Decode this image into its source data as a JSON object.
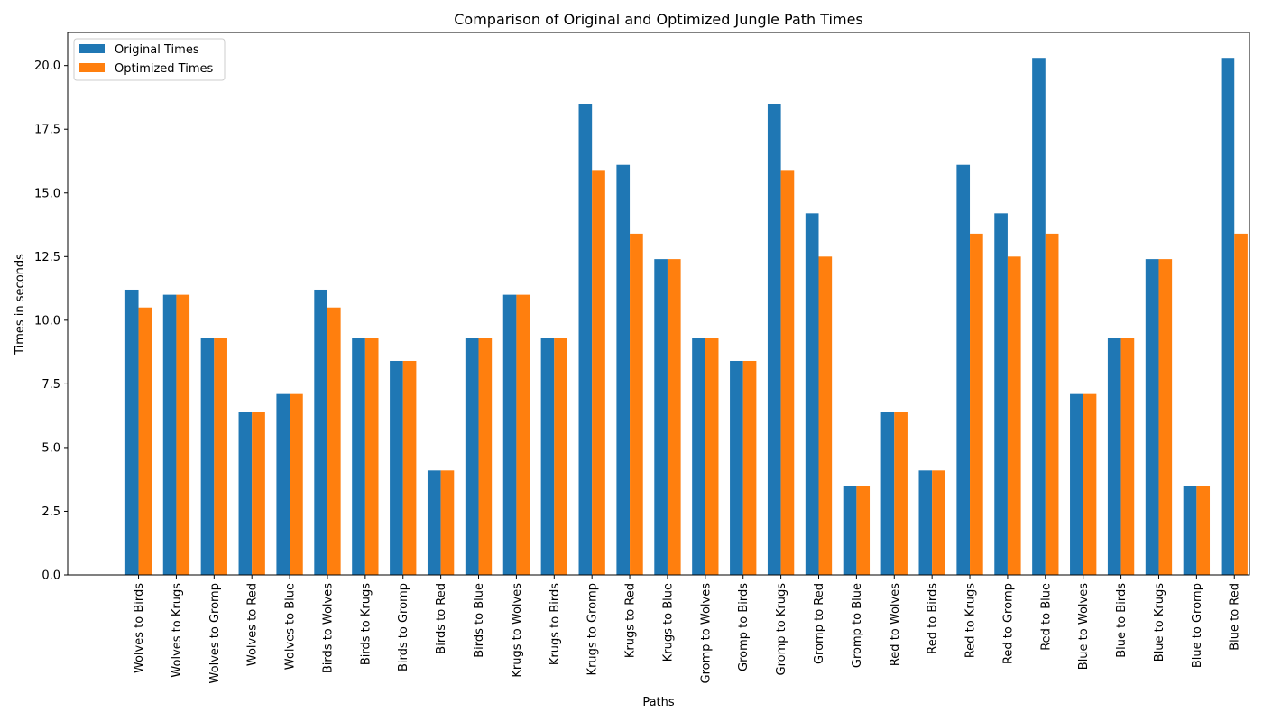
{
  "chart_data": {
    "type": "bar",
    "title": "Comparison of Original and Optimized Jungle Path Times",
    "xlabel": "Paths",
    "ylabel": "Times in seconds",
    "ylim": [
      0,
      21.3
    ],
    "yticks": [
      "0.0",
      "2.5",
      "5.0",
      "7.5",
      "10.0",
      "12.5",
      "15.0",
      "17.5",
      "20.0"
    ],
    "grid": false,
    "legend_position": "top-left",
    "categories": [
      "Wolves to Birds",
      "Wolves to Krugs",
      "Wolves to Gromp",
      "Wolves to Red",
      "Wolves to Blue",
      "Birds to Wolves",
      "Birds to Krugs",
      "Birds to Gromp",
      "Birds to Red",
      "Birds to Blue",
      "Krugs to Wolves",
      "Krugs to Birds",
      "Krugs to Gromp",
      "Krugs to Red",
      "Krugs to Blue",
      "Gromp to Wolves",
      "Gromp to Birds",
      "Gromp to Krugs",
      "Gromp to Red",
      "Gromp to Blue",
      "Red to Wolves",
      "Red to Birds",
      "Red to Krugs",
      "Red to Gromp",
      "Red to Blue",
      "Blue to Wolves",
      "Blue to Birds",
      "Blue to Krugs",
      "Blue to Gromp",
      "Blue to Red"
    ],
    "series": [
      {
        "name": "Original Times",
        "color": "#1f77b4",
        "values": [
          11.2,
          11.0,
          9.3,
          6.4,
          7.1,
          11.2,
          9.3,
          8.4,
          4.1,
          9.3,
          11.0,
          9.3,
          18.5,
          16.1,
          12.4,
          9.3,
          8.4,
          18.5,
          14.2,
          3.5,
          6.4,
          4.1,
          16.1,
          14.2,
          20.3,
          7.1,
          9.3,
          12.4,
          3.5,
          20.3
        ]
      },
      {
        "name": "Optimized Times",
        "color": "#ff7f0e",
        "values": [
          10.5,
          11.0,
          9.3,
          6.4,
          7.1,
          10.5,
          9.3,
          8.4,
          4.1,
          9.3,
          11.0,
          9.3,
          15.9,
          13.4,
          12.4,
          9.3,
          8.4,
          15.9,
          12.5,
          3.5,
          6.4,
          4.1,
          13.4,
          12.5,
          13.4,
          7.1,
          9.3,
          12.4,
          3.5,
          13.4
        ]
      }
    ]
  }
}
